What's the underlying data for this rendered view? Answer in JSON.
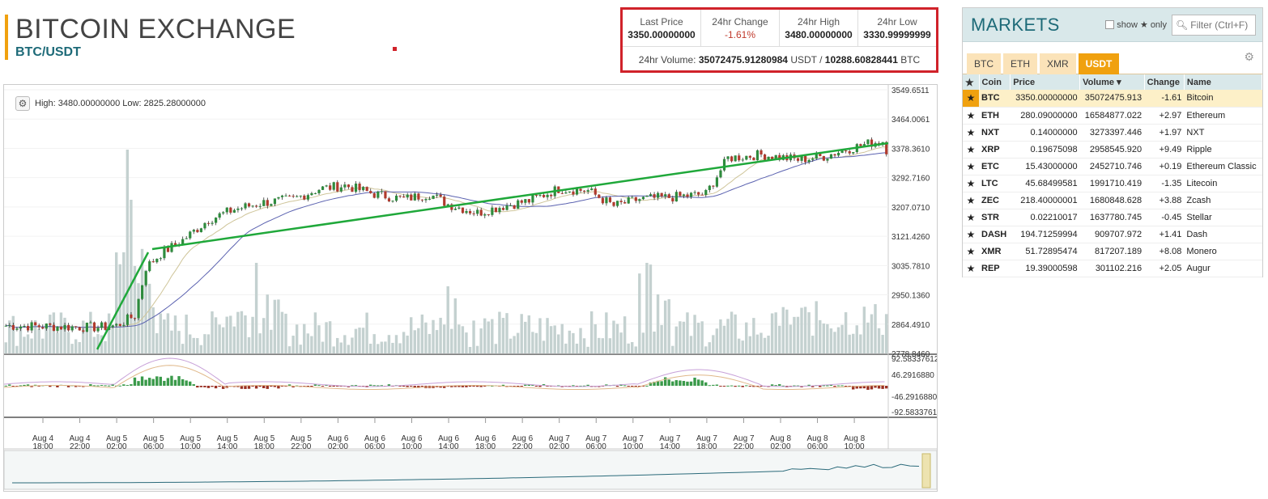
{
  "header": {
    "title": "BITCOIN EXCHANGE",
    "pair": "BTC/USDT"
  },
  "ticker": {
    "last_price_label": "Last Price",
    "last_price": "3350.00000000",
    "change_label": "24hr Change",
    "change": "-1.61%",
    "high_label": "24hr High",
    "high": "3480.00000000",
    "low_label": "24hr Low",
    "low": "3330.99999999",
    "volume_prefix": "24hr Volume:",
    "volume_usdt": "35072475.91280984",
    "usdt_label": "USDT /",
    "volume_btc": "10288.60828441",
    "btc_label": "BTC"
  },
  "chart": {
    "info": "High: 3480.00000000   Low: 2825.28000000",
    "price_ticks": [
      "3549.6511",
      "3464.0061",
      "3378.3610",
      "3292.7160",
      "3207.0710",
      "3121.4260",
      "3035.7810",
      "2950.1360",
      "2864.4910",
      "2778.8460"
    ],
    "macd_ticks": [
      "92.58337612",
      "46.2916880",
      "-46.2916880",
      "-92.5833761"
    ],
    "time_ticks": [
      {
        "d": "Aug 4",
        "t": "18:00"
      },
      {
        "d": "Aug 4",
        "t": "22:00"
      },
      {
        "d": "Aug 5",
        "t": "02:00"
      },
      {
        "d": "Aug 5",
        "t": "06:00"
      },
      {
        "d": "Aug 5",
        "t": "10:00"
      },
      {
        "d": "Aug 5",
        "t": "14:00"
      },
      {
        "d": "Aug 5",
        "t": "18:00"
      },
      {
        "d": "Aug 5",
        "t": "22:00"
      },
      {
        "d": "Aug 6",
        "t": "02:00"
      },
      {
        "d": "Aug 6",
        "t": "06:00"
      },
      {
        "d": "Aug 6",
        "t": "10:00"
      },
      {
        "d": "Aug 6",
        "t": "14:00"
      },
      {
        "d": "Aug 6",
        "t": "18:00"
      },
      {
        "d": "Aug 6",
        "t": "22:00"
      },
      {
        "d": "Aug 7",
        "t": "02:00"
      },
      {
        "d": "Aug 7",
        "t": "06:00"
      },
      {
        "d": "Aug 7",
        "t": "10:00"
      },
      {
        "d": "Aug 7",
        "t": "14:00"
      },
      {
        "d": "Aug 7",
        "t": "18:00"
      },
      {
        "d": "Aug 7",
        "t": "22:00"
      },
      {
        "d": "Aug 8",
        "t": "02:00"
      },
      {
        "d": "Aug 8",
        "t": "06:00"
      },
      {
        "d": "Aug 8",
        "t": "10:00"
      }
    ]
  },
  "markets": {
    "title": "MARKETS",
    "show_label": "show",
    "only_label": "only",
    "filter_placeholder": "Filter (Ctrl+F)",
    "tabs": [
      "BTC",
      "ETH",
      "XMR",
      "USDT"
    ],
    "active_tab": "USDT",
    "columns": [
      "Coin",
      "Price",
      "Volume",
      "Change",
      "Name"
    ],
    "rows": [
      {
        "coin": "BTC",
        "price": "3350.00000000",
        "volume": "35072475.913",
        "change": "-1.61",
        "name": "Bitcoin",
        "selected": true
      },
      {
        "coin": "ETH",
        "price": "280.09000000",
        "volume": "16584877.022",
        "change": "+2.97",
        "name": "Ethereum"
      },
      {
        "coin": "NXT",
        "price": "0.14000000",
        "volume": "3273397.446",
        "change": "+1.97",
        "name": "NXT"
      },
      {
        "coin": "XRP",
        "price": "0.19675098",
        "volume": "2958545.920",
        "change": "+9.49",
        "name": "Ripple"
      },
      {
        "coin": "ETC",
        "price": "15.43000000",
        "volume": "2452710.746",
        "change": "+0.19",
        "name": "Ethereum Classic"
      },
      {
        "coin": "LTC",
        "price": "45.68499581",
        "volume": "1991710.419",
        "change": "-1.35",
        "name": "Litecoin"
      },
      {
        "coin": "ZEC",
        "price": "218.40000001",
        "volume": "1680848.628",
        "change": "+3.88",
        "name": "Zcash"
      },
      {
        "coin": "STR",
        "price": "0.02210017",
        "volume": "1637780.745",
        "change": "-0.45",
        "name": "Stellar"
      },
      {
        "coin": "DASH",
        "price": "194.71259994",
        "volume": "909707.972",
        "change": "+1.41",
        "name": "Dash"
      },
      {
        "coin": "XMR",
        "price": "51.72895474",
        "volume": "817207.189",
        "change": "+8.08",
        "name": "Monero"
      },
      {
        "coin": "REP",
        "price": "19.39000598",
        "volume": "301102.216",
        "change": "+2.05",
        "name": "Augur"
      }
    ]
  },
  "colors": {
    "accent": "#f0a10f",
    "teal": "#1d6a78",
    "up": "#2e8b3d",
    "down": "#b03a2e",
    "trend": "#1fa83a"
  }
}
